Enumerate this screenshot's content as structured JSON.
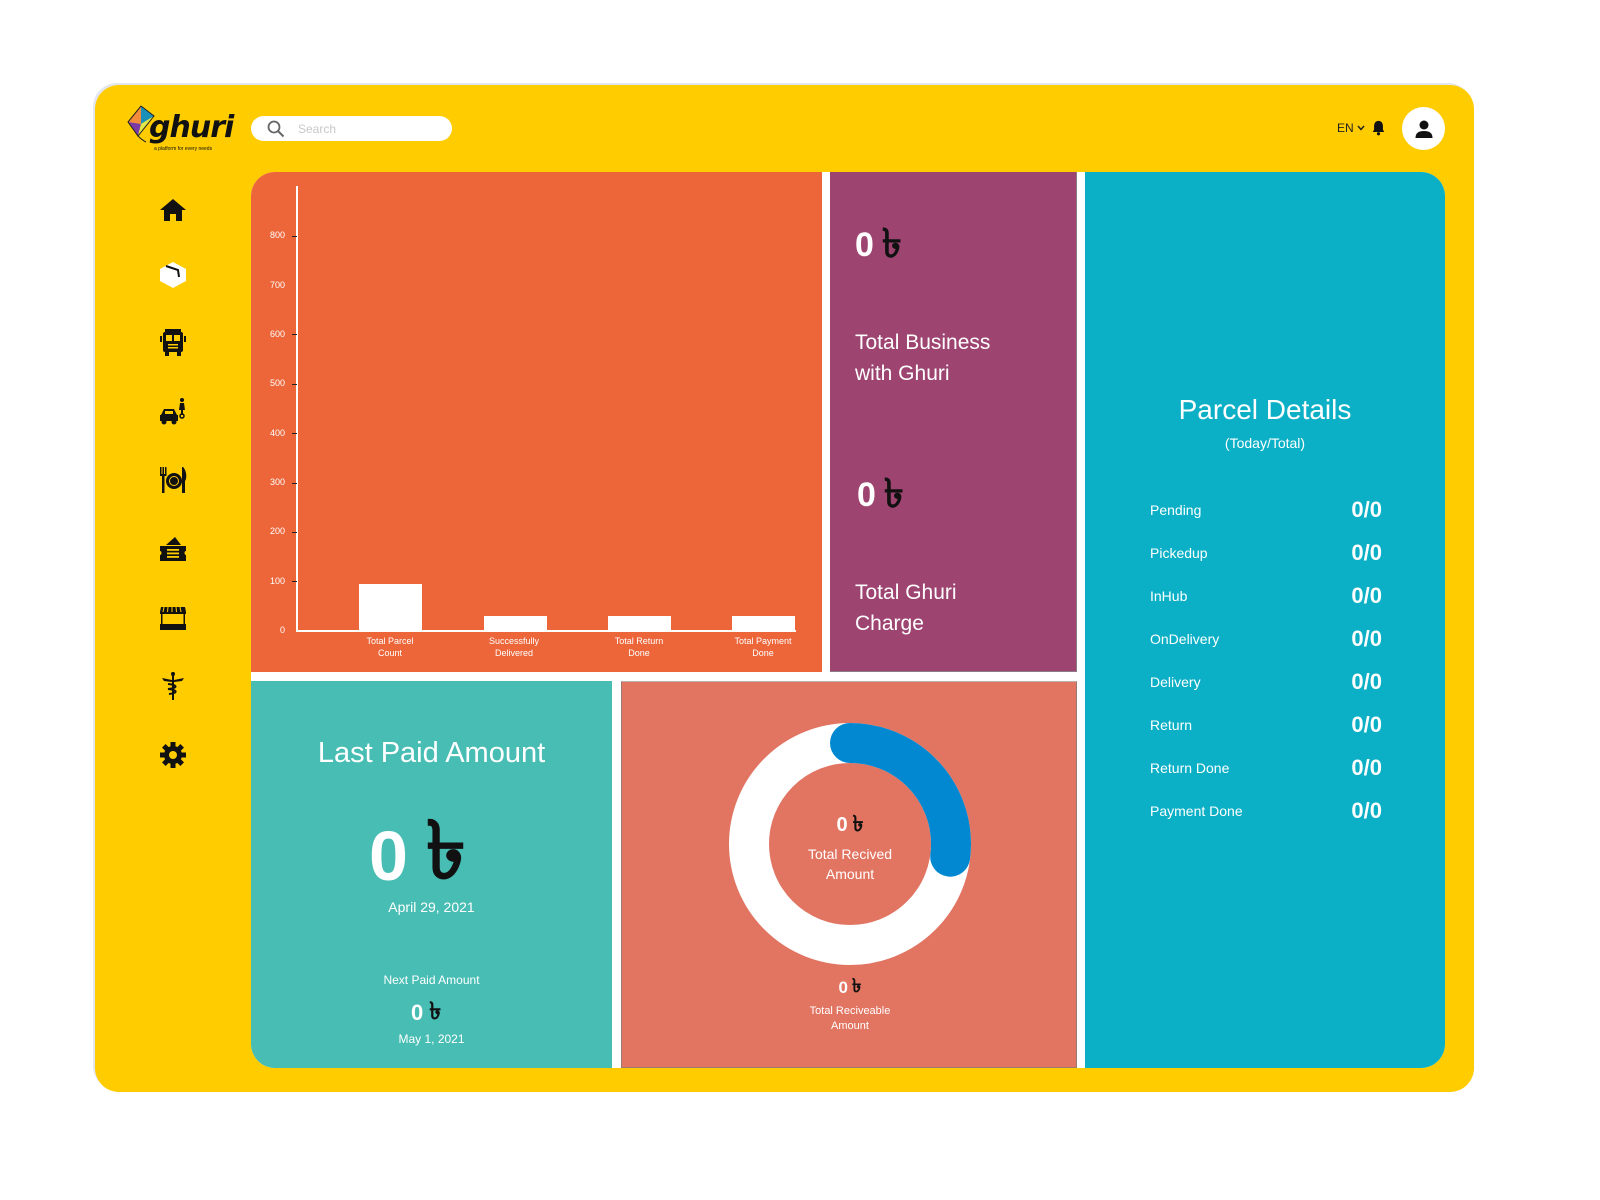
{
  "app": {
    "logo_text": "ghuri",
    "logo_tagline": "a platform for every needs",
    "brand_color": "#FFCC00"
  },
  "header": {
    "search": {
      "placeholder": "Search",
      "value": ""
    },
    "language": "EN",
    "icons": [
      "search-icon",
      "chevron-down-icon",
      "bell-icon",
      "user-icon"
    ]
  },
  "sidebar": {
    "items": [
      {
        "name": "home",
        "icon": "home-icon"
      },
      {
        "name": "parcel",
        "icon": "box-icon"
      },
      {
        "name": "bus",
        "icon": "bus-icon"
      },
      {
        "name": "ride",
        "icon": "car-bike-icon"
      },
      {
        "name": "food",
        "icon": "food-icon"
      },
      {
        "name": "ticket",
        "icon": "ticket-icon"
      },
      {
        "name": "shop",
        "icon": "shop-icon"
      },
      {
        "name": "medical",
        "icon": "caduceus-icon"
      },
      {
        "name": "settings",
        "icon": "gear-icon"
      }
    ]
  },
  "chart_data": {
    "type": "bar",
    "title": "",
    "xlabel": "",
    "ylabel": "",
    "categories": [
      "Total Parcel Count",
      "Successfully Delivered",
      "Total Return Done",
      "Total Payment Done"
    ],
    "category_lines": [
      [
        "Total Parcel",
        "Count"
      ],
      [
        "Successfully",
        "Delivered"
      ],
      [
        "Total Return",
        "Done"
      ],
      [
        "Total Payment",
        "Done"
      ]
    ],
    "values": [
      95,
      30,
      30,
      30
    ],
    "yticks": [
      0,
      100,
      200,
      300,
      400,
      500,
      600,
      700,
      800
    ],
    "ylim": [
      0,
      900
    ],
    "grid": false,
    "bar_color": "#FFFFFF",
    "background": "#EC663A"
  },
  "business": {
    "total_business_amount": "0",
    "total_business_label": [
      "Total Business",
      "with Ghuri"
    ],
    "total_charge_amount": "0",
    "total_charge_label": [
      "Total Ghuri",
      "Charge"
    ],
    "currency_symbol": "৳"
  },
  "parcel_details": {
    "title": "Parcel Details",
    "subtitle": "(Today/Total)",
    "rows": [
      {
        "label": "Pending",
        "value": "0/0"
      },
      {
        "label": "Pickedup",
        "value": "0/0"
      },
      {
        "label": "InHub",
        "value": "0/0"
      },
      {
        "label": "OnDelivery",
        "value": "0/0"
      },
      {
        "label": "Delivery",
        "value": "0/0"
      },
      {
        "label": "Return",
        "value": "0/0"
      },
      {
        "label": "Return Done",
        "value": "0/0"
      },
      {
        "label": "Payment Done",
        "value": "0/0"
      }
    ]
  },
  "last_paid": {
    "title": "Last Paid Amount",
    "amount": "0",
    "date": "April 29, 2021",
    "next_label": "Next Paid Amount",
    "next_amount": "0",
    "next_date": "May 1, 2021"
  },
  "received": {
    "received_amount": "0",
    "received_label": [
      "Total Recived",
      "Amount"
    ],
    "receivable_amount": "0",
    "receivable_label": [
      "Total Reciveable",
      "Amount"
    ],
    "progress_percent": 27,
    "progress_color": "#0288D1",
    "track_color": "#FFFFFF"
  },
  "colors": {
    "chart_panel": "#EC663A",
    "business_panel": "#9D4471",
    "parcel_panel": "#0BB0C6",
    "last_paid_panel": "#48BDB4",
    "received_panel": "#E27462"
  }
}
